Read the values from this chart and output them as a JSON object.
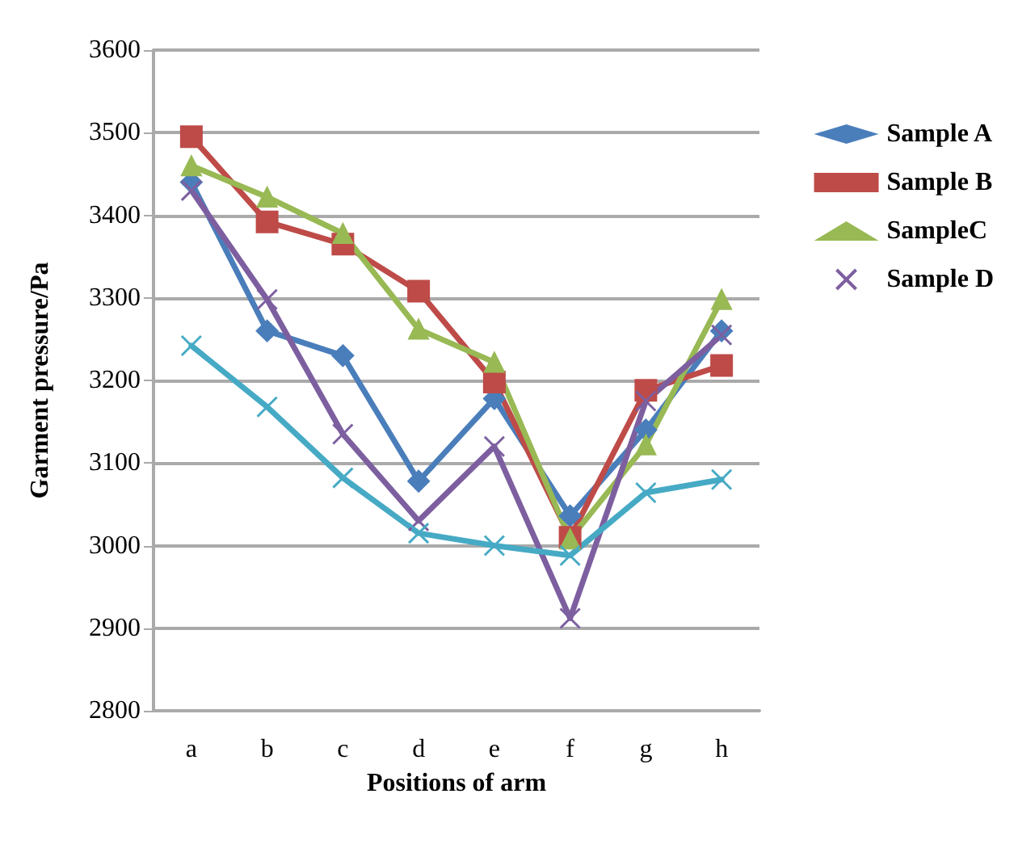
{
  "chart_data": {
    "type": "line",
    "xlabel": "Positions of arm",
    "ylabel": "Garment pressure/Pa",
    "categories": [
      "a",
      "b",
      "c",
      "d",
      "e",
      "f",
      "g",
      "h"
    ],
    "series": [
      {
        "name": "Sample A",
        "color": "#4a7ebb",
        "marker": "diamond",
        "values": [
          3440,
          3260,
          3230,
          3078,
          3178,
          3036,
          3140,
          3260
        ]
      },
      {
        "name": "Sample B",
        "color": "#be4b48",
        "marker": "square",
        "values": [
          3495,
          3392,
          3365,
          3308,
          3198,
          3010,
          3188,
          3218
        ]
      },
      {
        "name": "SampleC",
        "color": "#98b954",
        "marker": "triangle",
        "values": [
          3460,
          3422,
          3378,
          3262,
          3222,
          3008,
          3122,
          3298
        ]
      },
      {
        "name": "Sample D",
        "color": "#7d5fa0",
        "marker": "cross",
        "values": [
          3430,
          3298,
          3135,
          3030,
          3120,
          2912,
          3175,
          3255
        ]
      },
      {
        "color": "#46aac5",
        "marker": "cross",
        "values": [
          3242,
          3168,
          3082,
          3015,
          3000,
          2988,
          3064,
          3080
        ]
      }
    ],
    "ylim": [
      2800,
      3600
    ],
    "yticks": [
      2800,
      2900,
      3000,
      3100,
      3200,
      3300,
      3400,
      3500,
      3600
    ],
    "grid": "y",
    "legend": "right",
    "line_style": "solid"
  }
}
